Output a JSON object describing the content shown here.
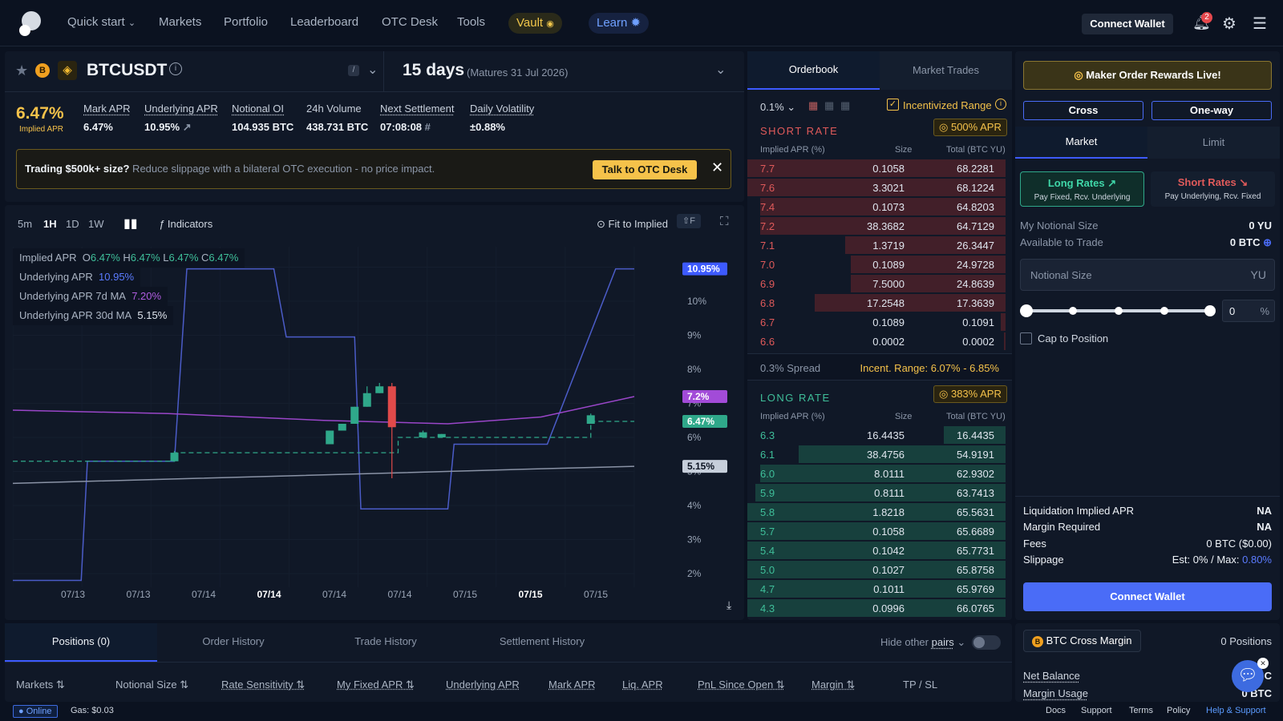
{
  "nav": {
    "items": [
      "Quick start",
      "Markets",
      "Portfolio",
      "Leaderboard",
      "OTC Desk",
      "Tools"
    ],
    "vault": "Vault",
    "learn": "Learn",
    "connect": "Connect Wallet",
    "notif_count": "2"
  },
  "market": {
    "symbol": "BTCUSDT",
    "duration": "15 days",
    "maturity": "(Matures 31 Jul 2026)",
    "implied_apr": "6.47%",
    "implied_apr_label": "Implied APR",
    "stats": [
      {
        "label": "Mark APR",
        "value": "6.47%"
      },
      {
        "label": "Underlying APR",
        "value": "10.95%"
      },
      {
        "label": "Notional OI",
        "value": "104.935 BTC"
      },
      {
        "label": "24h Volume",
        "value": "438.731 BTC"
      },
      {
        "label": "Next Settlement",
        "value": "07:08:08"
      },
      {
        "label": "Daily Volatility",
        "value": "±0.88%"
      }
    ]
  },
  "banner": {
    "bold": "Trading $500k+ size?",
    "text": " Reduce slippage with a bilateral OTC execution - no price impact.",
    "button": "Talk to OTC Desk"
  },
  "chart_toolbar": {
    "intervals": [
      "5m",
      "1H",
      "1D",
      "1W"
    ],
    "indicators": "Indicators",
    "fit": "Fit to Implied",
    "shortcut": "⇧F"
  },
  "legend": {
    "implied": "Implied APR",
    "ohlc": [
      {
        "k": "O",
        "v": "6.47%"
      },
      {
        "k": "H",
        "v": "6.47%"
      },
      {
        "k": "L",
        "v": "6.47%"
      },
      {
        "k": "C",
        "v": "6.47%"
      }
    ],
    "underlying": "Underlying APR",
    "underlying_v": "10.95%",
    "ma7": "Underlying APR 7d MA",
    "ma7_v": "7.20%",
    "ma30": "Underlying APR 30d MA",
    "ma30_v": "5.15%"
  },
  "chart_data": {
    "type": "line",
    "y_ticks": [
      "10%",
      "9%",
      "8%",
      "7%",
      "6%",
      "5%",
      "4%",
      "3%",
      "2%"
    ],
    "x_ticks": [
      "07/13",
      "07/13",
      "07/14",
      "07/14",
      "07/14",
      "07/14",
      "07/15",
      "07/15",
      "07/15"
    ],
    "ylim": [
      1.6,
      11.6
    ],
    "price_labels": [
      {
        "text": "10.95%",
        "value": 10.95,
        "color": "#3d5afe"
      },
      {
        "text": "7.2%",
        "value": 7.2,
        "color": "#a24bd8"
      },
      {
        "text": "6.47%",
        "value": 6.47,
        "color": "#2fa88a"
      },
      {
        "text": "5.15%",
        "value": 5.15,
        "color": "#c7cfdb"
      }
    ],
    "series": [
      {
        "name": "Underlying APR",
        "color": "#4b5cc8",
        "x": [
          0,
          0.11,
          0.12,
          0.26,
          0.28,
          0.42,
          0.44,
          0.55,
          0.56,
          0.7,
          0.71,
          0.86,
          0.97,
          1.0
        ],
        "y": [
          1.8,
          1.8,
          5.3,
          5.3,
          10.95,
          10.95,
          8.95,
          8.95,
          3.9,
          3.9,
          5.8,
          5.8,
          10.95,
          10.95
        ]
      },
      {
        "name": "Underlying APR 7d MA",
        "color": "#9a46c9",
        "x": [
          0,
          0.25,
          0.5,
          0.7,
          0.85,
          1.0
        ],
        "y": [
          6.8,
          6.7,
          6.5,
          6.4,
          6.6,
          7.2
        ]
      },
      {
        "name": "Underlying APR 30d MA",
        "color": "#8a93a6",
        "x": [
          0,
          0.3,
          0.6,
          0.85,
          1.0
        ],
        "y": [
          4.65,
          4.8,
          4.95,
          5.08,
          5.15
        ]
      }
    ],
    "candles": [
      {
        "x": 0.26,
        "o": 5.3,
        "c": 5.55,
        "h": 5.6,
        "l": 5.3
      },
      {
        "x": 0.51,
        "o": 5.8,
        "c": 6.2,
        "h": 6.2,
        "l": 5.8
      },
      {
        "x": 0.53,
        "o": 6.2,
        "c": 6.4,
        "h": 6.4,
        "l": 6.2
      },
      {
        "x": 0.55,
        "o": 6.4,
        "c": 6.9,
        "h": 6.9,
        "l": 6.4
      },
      {
        "x": 0.57,
        "o": 6.9,
        "c": 7.3,
        "h": 7.5,
        "l": 6.9
      },
      {
        "x": 0.59,
        "o": 7.3,
        "c": 7.5,
        "h": 7.6,
        "l": 7.3
      },
      {
        "x": 0.61,
        "o": 7.5,
        "c": 6.3,
        "h": 7.6,
        "l": 4.8
      },
      {
        "x": 0.66,
        "o": 6.0,
        "c": 6.15,
        "h": 6.2,
        "l": 6.0
      },
      {
        "x": 0.69,
        "o": 6.0,
        "c": 6.1,
        "h": 6.1,
        "l": 6.0
      },
      {
        "x": 0.93,
        "o": 6.4,
        "c": 6.65,
        "h": 6.7,
        "l": 6.4
      }
    ],
    "dashed_x": [
      0,
      0.26,
      0.26,
      0.62,
      0.62,
      0.93,
      0.93,
      1.0
    ],
    "dashed_y": [
      5.3,
      5.3,
      5.55,
      5.55,
      6.0,
      6.0,
      6.47,
      6.47
    ]
  },
  "orderbook": {
    "tabs": [
      "Orderbook",
      "Market Trades"
    ],
    "tick": "0.1%",
    "incent": "Incentivized Range",
    "short_title": "SHORT RATE",
    "short_apr": "500% APR",
    "long_title": "LONG RATE",
    "long_apr": "383% APR",
    "cols": [
      "Implied APR (%)",
      "Size",
      "Total (BTC YU)"
    ],
    "spread": "0.3% Spread",
    "incent_range": "Incent. Range: 6.07% - 6.85%",
    "asks": [
      {
        "p": "7.7",
        "s": "0.1058",
        "t": "68.2281",
        "d": 1.0
      },
      {
        "p": "7.6",
        "s": "3.3021",
        "t": "68.1224",
        "d": 1.0
      },
      {
        "p": "7.4",
        "s": "0.1073",
        "t": "64.8203",
        "d": 0.95
      },
      {
        "p": "7.2",
        "s": "38.3682",
        "t": "64.7129",
        "d": 0.95
      },
      {
        "p": "7.1",
        "s": "1.3719",
        "t": "26.3447",
        "d": 0.62
      },
      {
        "p": "7.0",
        "s": "0.1089",
        "t": "24.9728",
        "d": 0.6
      },
      {
        "p": "6.9",
        "s": "7.5000",
        "t": "24.8639",
        "d": 0.6
      },
      {
        "p": "6.8",
        "s": "17.2548",
        "t": "17.3639",
        "d": 0.74
      },
      {
        "p": "6.7",
        "s": "0.1089",
        "t": "0.1091",
        "d": 0.02
      },
      {
        "p": "6.6",
        "s": "0.0002",
        "t": "0.0002",
        "d": 0.005
      }
    ],
    "bids": [
      {
        "p": "6.3",
        "s": "16.4435",
        "t": "16.4435",
        "d": 0.24
      },
      {
        "p": "6.1",
        "s": "38.4756",
        "t": "54.9191",
        "d": 0.8
      },
      {
        "p": "6.0",
        "s": "8.0111",
        "t": "62.9302",
        "d": 0.95
      },
      {
        "p": "5.9",
        "s": "0.8111",
        "t": "63.7413",
        "d": 0.97
      },
      {
        "p": "5.8",
        "s": "1.8218",
        "t": "65.5631",
        "d": 1.0
      },
      {
        "p": "5.7",
        "s": "0.1058",
        "t": "65.6689",
        "d": 1.0
      },
      {
        "p": "5.4",
        "s": "0.1042",
        "t": "65.7731",
        "d": 1.0
      },
      {
        "p": "5.0",
        "s": "0.1027",
        "t": "65.8758",
        "d": 1.0
      },
      {
        "p": "4.7",
        "s": "0.1011",
        "t": "65.9769",
        "d": 1.0
      },
      {
        "p": "4.3",
        "s": "0.0996",
        "t": "66.0765",
        "d": 1.0
      }
    ]
  },
  "trade": {
    "rewards": "Maker Order Rewards Live!",
    "cross": "Cross",
    "oneway": "One-way",
    "market": "Market",
    "limit": "Limit",
    "long": "Long Rates",
    "long_sub": "Pay Fixed, Rcv. Underlying",
    "short": "Short Rates",
    "short_sub": "Pay Underlying, Rcv. Fixed",
    "my_notional": "My Notional Size",
    "my_notional_v": "0 YU",
    "avail": "Available to Trade",
    "avail_v": "0 BTC",
    "notional_ph": "Notional Size",
    "unit": "YU",
    "pct": "0",
    "pct_unit": "%",
    "cap": "Cap to Position",
    "liq": "Liquidation Implied APR",
    "liq_v": "NA",
    "margin_req": "Margin Required",
    "margin_req_v": "NA",
    "fees": "Fees",
    "fees_v": "0 BTC ($0.00)",
    "slip": "Slippage",
    "slip_v": "Est: 0% / Max: ",
    "slip_max": "0.80%",
    "connect": "Connect Wallet"
  },
  "bottom": {
    "tabs": [
      "Positions (0)",
      "Order History",
      "Trade History",
      "Settlement History"
    ],
    "hide": "Hide other",
    "pairs": "pairs",
    "cols": [
      "Markets",
      "Notional Size",
      "Rate Sensitivity",
      "My Fixed APR",
      "Underlying APR",
      "Mark APR",
      "Liq. APR",
      "PnL Since Open",
      "Margin",
      "TP / SL"
    ]
  },
  "margin_panel": {
    "title": "BTC Cross Margin",
    "positions": "0 Positions",
    "net": "Net Balance",
    "net_v": "C",
    "usage": "Margin Usage",
    "usage_v": "0 BTC"
  },
  "status": {
    "online": "Online",
    "gas": "Gas: $0.03",
    "links": [
      "Docs",
      "Support",
      "Terms",
      "Policy",
      "Help & Support"
    ]
  }
}
